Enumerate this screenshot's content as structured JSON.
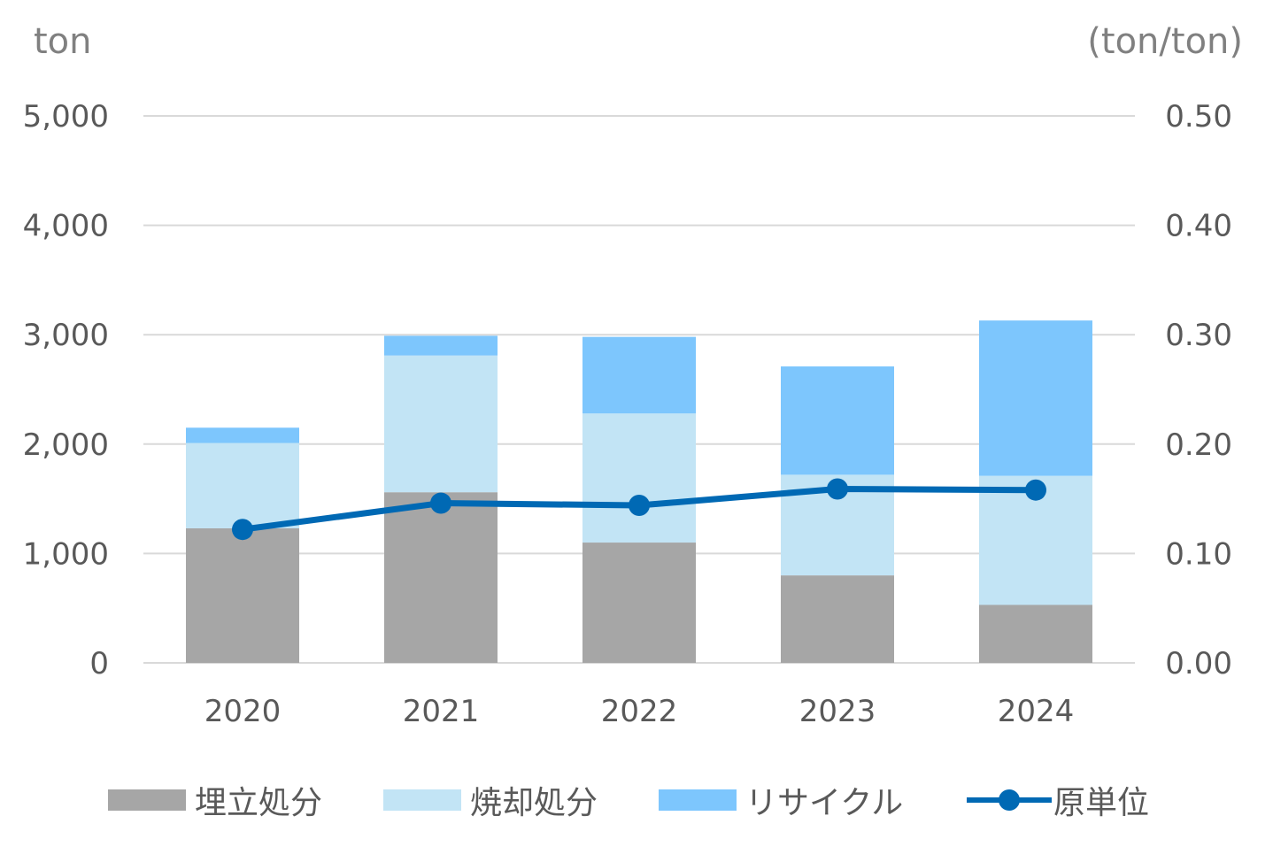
{
  "chart_data": {
    "type": "bar",
    "categories": [
      "2020",
      "2021",
      "2022",
      "2023",
      "2024"
    ],
    "series": [
      {
        "name": "埋立処分",
        "kind": "stacked-bar",
        "axis": "left",
        "color": "#A6A6A6",
        "values": [
          1230,
          1560,
          1100,
          800,
          530
        ]
      },
      {
        "name": "焼却処分",
        "kind": "stacked-bar",
        "axis": "left",
        "color": "#C2E4F5",
        "values": [
          780,
          1250,
          1180,
          920,
          1180
        ]
      },
      {
        "name": "リサイクル",
        "kind": "stacked-bar",
        "axis": "left",
        "color": "#7DC6FD",
        "values": [
          140,
          180,
          700,
          990,
          1420
        ]
      },
      {
        "name": "原単位",
        "kind": "line",
        "axis": "right",
        "color": "#0069B4",
        "values": [
          0.122,
          0.146,
          0.144,
          0.159,
          0.158
        ]
      }
    ],
    "y_left": {
      "unit": "ton",
      "min": 0,
      "max": 5000,
      "ticks": [
        "0",
        "1,000",
        "2,000",
        "3,000",
        "4,000",
        "5,000"
      ]
    },
    "y_right": {
      "unit": "(ton/ton)",
      "min": 0,
      "max": 0.5,
      "ticks": [
        "0.00",
        "0.10",
        "0.20",
        "0.30",
        "0.40",
        "0.50"
      ]
    },
    "grid": true,
    "legend_position": "bottom"
  }
}
